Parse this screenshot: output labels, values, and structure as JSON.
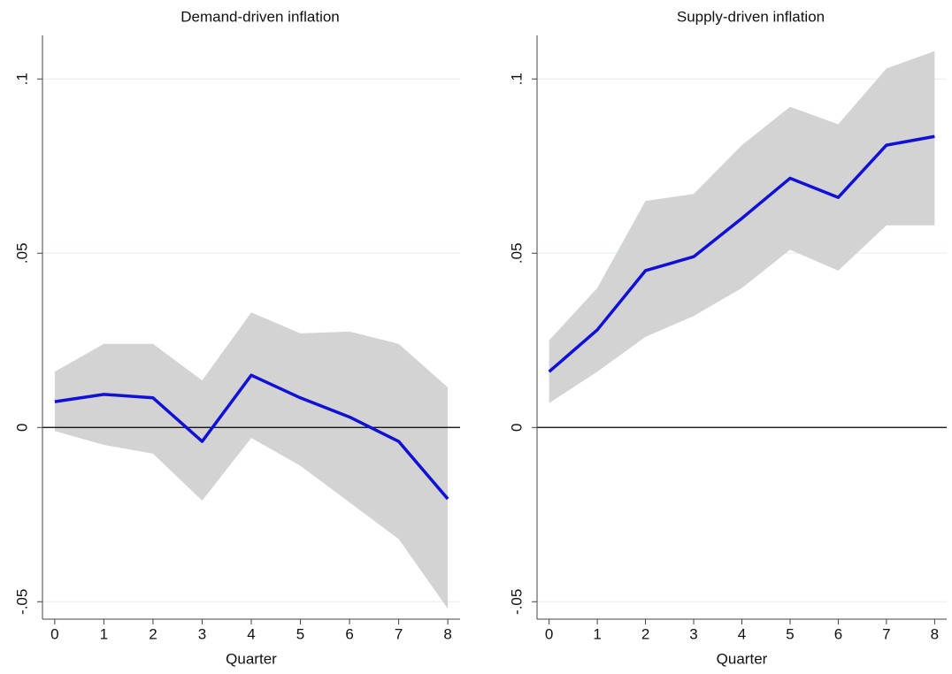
{
  "chart_data": [
    {
      "type": "line",
      "title": "Demand-driven inflation",
      "xlabel": "Quarter",
      "x": [
        0,
        1,
        2,
        3,
        4,
        5,
        6,
        7,
        8
      ],
      "values": [
        0.0074,
        0.0095,
        0.0085,
        -0.004,
        0.015,
        0.0085,
        0.003,
        -0.004,
        -0.0205
      ],
      "upper": [
        0.016,
        0.024,
        0.024,
        0.0135,
        0.033,
        0.027,
        0.0275,
        0.024,
        0.0115
      ],
      "lower": [
        -0.001,
        -0.005,
        -0.0075,
        -0.021,
        -0.003,
        -0.011,
        -0.0215,
        -0.032,
        -0.052
      ],
      "color": "#1010d8",
      "band_color": "#d3d3d3",
      "xlim": [
        -0.25,
        8.25
      ],
      "xticks": [
        0,
        1,
        2,
        3,
        4,
        5,
        6,
        7,
        8
      ],
      "ylim": [
        -0.055,
        0.1125
      ],
      "yticks": [
        {
          "value": -0.05,
          "label": "-.05"
        },
        0,
        {
          "value": 0.05,
          "label": ".05"
        },
        {
          "value": 0.1,
          "label": ".1"
        }
      ],
      "grid": true,
      "hline": 0
    },
    {
      "type": "line",
      "title": "Supply-driven inflation",
      "xlabel": "Quarter",
      "x": [
        0,
        1,
        2,
        3,
        4,
        5,
        6,
        7,
        8
      ],
      "values": [
        0.016,
        0.028,
        0.045,
        0.049,
        0.06,
        0.0715,
        0.066,
        0.081,
        0.0835
      ],
      "upper": [
        0.025,
        0.04,
        0.065,
        0.067,
        0.081,
        0.092,
        0.087,
        0.103,
        0.108
      ],
      "lower": [
        0.007,
        0.016,
        0.026,
        0.032,
        0.04,
        0.051,
        0.045,
        0.058,
        0.058
      ],
      "color": "#1010d8",
      "band_color": "#d3d3d3",
      "xlim": [
        -0.25,
        8.25
      ],
      "xticks": [
        0,
        1,
        2,
        3,
        4,
        5,
        6,
        7,
        8
      ],
      "ylim": [
        -0.055,
        0.1125
      ],
      "yticks": [
        {
          "value": -0.05,
          "label": "-.05"
        },
        0,
        {
          "value": 0.05,
          "label": ".05"
        },
        {
          "value": 0.1,
          "label": ".1"
        }
      ],
      "grid": true,
      "hline": 0
    }
  ]
}
